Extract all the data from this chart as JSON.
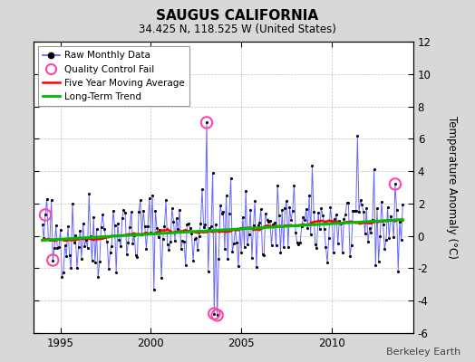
{
  "title": "SAUGUS CALIFORNIA",
  "subtitle": "34.425 N, 118.525 W (United States)",
  "ylabel": "Temperature Anomaly (°C)",
  "credit": "Berkeley Earth",
  "ylim": [
    -6,
    12
  ],
  "yticks": [
    -6,
    -4,
    -2,
    0,
    2,
    4,
    6,
    8,
    10,
    12
  ],
  "xlim": [
    1993.5,
    2014.5
  ],
  "xticks": [
    1995,
    2000,
    2005,
    2010
  ],
  "bg_color": "#d8d8d8",
  "plot_bg_color": "#ffffff",
  "raw_color": "#5555ff",
  "dot_color": "#000000",
  "qc_color": "#ff44aa",
  "ma_color": "#ff0000",
  "trend_color": "#00bb00",
  "seed": 42
}
